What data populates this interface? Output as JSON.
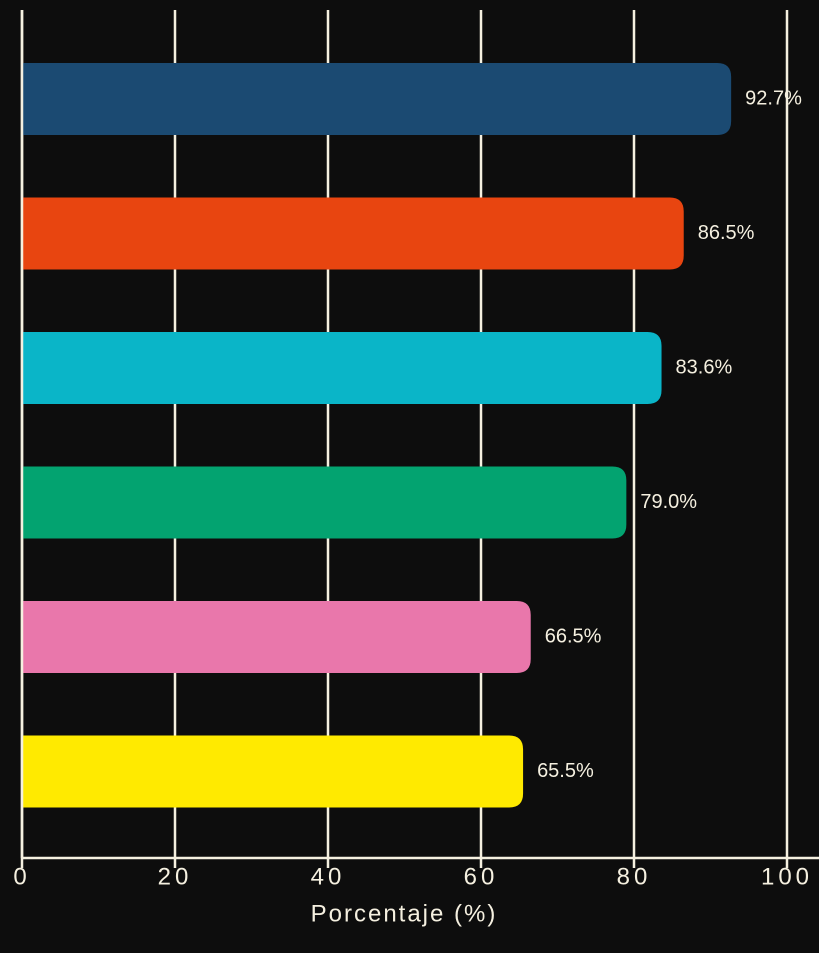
{
  "chart_data": {
    "type": "barh",
    "values": [
      92.7,
      86.5,
      83.6,
      79.0,
      66.5,
      65.5
    ],
    "value_labels": [
      "92.7%",
      "86.5%",
      "83.6%",
      "79.0%",
      "66.5%",
      "65.5%"
    ],
    "colors": [
      "#1b4a72",
      "#e84510",
      "#0ab5c8",
      "#03a370",
      "#e977ab",
      "#ffea00"
    ],
    "xlim": [
      0,
      100
    ],
    "xticks": [
      0,
      20,
      40,
      60,
      80,
      100
    ],
    "xlabel": "Porcentaje (%)",
    "grid": true
  }
}
